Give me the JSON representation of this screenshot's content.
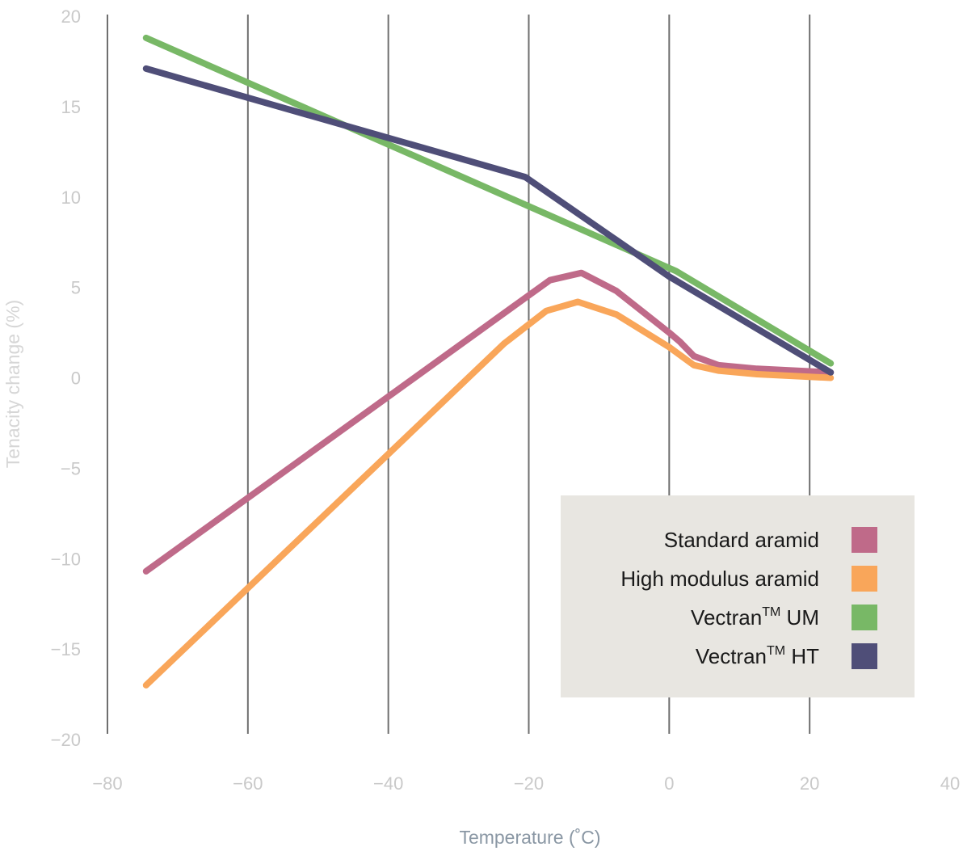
{
  "chart_data": {
    "type": "line",
    "xlabel": "Temperature (˚C)",
    "ylabel": "Tenacity change (%)",
    "xlim": [
      -80,
      40
    ],
    "ylim": [
      -20,
      20
    ],
    "xticks": [
      -80,
      -60,
      -40,
      -20,
      0,
      20,
      40
    ],
    "yticks": [
      20,
      15,
      10,
      5,
      0,
      -5,
      -10,
      -15,
      -20
    ],
    "xtick_labels": [
      "−80",
      "−60",
      "−40",
      "−20",
      "0",
      "20",
      "40"
    ],
    "ytick_labels": [
      "20",
      "15",
      "10",
      "5",
      "0",
      "−5",
      "−10",
      "−15",
      "−20"
    ],
    "grid": "vertical",
    "legend_position": "bottom-right",
    "series": [
      {
        "name": "Standard aramid",
        "legend_main": "Standard aramid",
        "legend_sup": "",
        "legend_tail": "",
        "color": "#bf6a89",
        "x": [
          -74.5,
          -22,
          -17,
          -12.5,
          -7.5,
          0,
          1.5,
          3.5,
          7,
          12.5,
          23
        ],
        "y": [
          -10.7,
          4.0,
          5.4,
          5.8,
          4.8,
          2.5,
          2.0,
          1.2,
          0.7,
          0.5,
          0.3
        ]
      },
      {
        "name": "High modulus aramid",
        "legend_main": "High modulus aramid",
        "legend_sup": "",
        "legend_tail": "",
        "color": "#f9a65a",
        "x": [
          -74.5,
          -23.5,
          -17.5,
          -13,
          -7.5,
          0,
          3.5,
          7,
          12.5,
          23
        ],
        "y": [
          -17.0,
          1.9,
          3.7,
          4.2,
          3.5,
          1.7,
          0.7,
          0.4,
          0.2,
          0.0
        ]
      },
      {
        "name": "Vectran™ UM",
        "legend_main": "Vectran",
        "legend_sup": "TM",
        "legend_tail": " UM",
        "color": "#78b866",
        "x": [
          -74.5,
          1,
          23
        ],
        "y": [
          18.8,
          5.9,
          0.8
        ]
      },
      {
        "name": "Vectran™ HT",
        "legend_main": "Vectran",
        "legend_sup": "TM",
        "legend_tail": " HT",
        "color": "#4f4e78",
        "x": [
          -74.5,
          -20.5,
          0,
          23
        ],
        "y": [
          17.1,
          11.1,
          5.6,
          0.3
        ]
      }
    ]
  },
  "colors": {
    "grid": "#6f6f6f",
    "tick_label": "#c9c9c9",
    "xlabel": "#8a97a4",
    "ylabel": "#d6d6d6",
    "legend_background": "#e8e6e1",
    "legend_text": "#1a1a1a"
  }
}
